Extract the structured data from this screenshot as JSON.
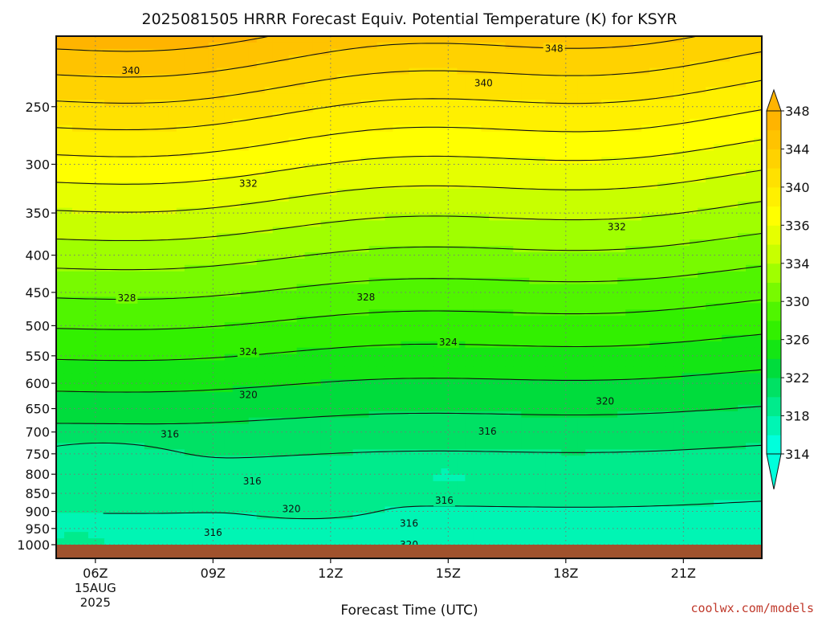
{
  "chart_data": {
    "type": "heatmap",
    "title": "2025081505 HRRR Forecast Equiv. Potential Temperature (K) for KSYR",
    "xlabel": "Forecast Time (UTC)",
    "ylabel": "",
    "x_ticks": [
      {
        "hour": 6,
        "label": "06Z",
        "date": "15AUG",
        "year": "2025"
      },
      {
        "hour": 9,
        "label": "09Z"
      },
      {
        "hour": 12,
        "label": "12Z"
      },
      {
        "hour": 15,
        "label": "15Z"
      },
      {
        "hour": 18,
        "label": "18Z"
      },
      {
        "hour": 21,
        "label": "21Z"
      }
    ],
    "xlim": [
      5,
      23
    ],
    "y_ticks": [
      250,
      300,
      350,
      400,
      450,
      500,
      550,
      600,
      650,
      700,
      750,
      800,
      850,
      900,
      950,
      1000
    ],
    "ylim": [
      1000,
      200
    ],
    "y_scale": "log-pressure",
    "colorbar": {
      "levels": [
        314,
        316,
        318,
        320,
        322,
        324,
        326,
        328,
        330,
        332,
        334,
        336,
        338,
        340,
        342,
        344,
        346,
        348
      ],
      "labels": [
        314,
        318,
        322,
        326,
        330,
        334,
        336,
        340,
        344,
        348
      ],
      "colors": [
        "#00ffdc",
        "#00f5b4",
        "#00eb8c",
        "#00e164",
        "#00dc3c",
        "#14e614",
        "#32f000",
        "#50f500",
        "#78fa00",
        "#a0ff00",
        "#c8ff00",
        "#e6ff00",
        "#ffff00",
        "#fff000",
        "#ffe100",
        "#ffd200",
        "#ffc300",
        "#ffb400"
      ],
      "extend": "both"
    },
    "contour_labels": [
      {
        "value": "348",
        "x": 17.7,
        "p": 208
      },
      {
        "value": "340",
        "x": 6.9,
        "p": 223
      },
      {
        "value": "340",
        "x": 15.9,
        "p": 232
      },
      {
        "value": "332",
        "x": 9.9,
        "p": 319
      },
      {
        "value": "332",
        "x": 19.3,
        "p": 366
      },
      {
        "value": "328",
        "x": 6.8,
        "p": 458
      },
      {
        "value": "328",
        "x": 12.9,
        "p": 457
      },
      {
        "value": "324",
        "x": 9.9,
        "p": 543
      },
      {
        "value": "324",
        "x": 15.0,
        "p": 527
      },
      {
        "value": "320",
        "x": 9.9,
        "p": 622
      },
      {
        "value": "320",
        "x": 19.0,
        "p": 635
      },
      {
        "value": "316",
        "x": 7.9,
        "p": 705
      },
      {
        "value": "316",
        "x": 16.0,
        "p": 699
      },
      {
        "value": "316",
        "x": 10.0,
        "p": 818
      },
      {
        "value": "316",
        "x": 14.9,
        "p": 870
      },
      {
        "value": "320",
        "x": 11.0,
        "p": 893
      },
      {
        "value": "316",
        "x": 14.0,
        "p": 935
      },
      {
        "value": "316",
        "x": 9.0,
        "p": 963
      },
      {
        "value": "320",
        "x": 14.0,
        "p": 1000
      }
    ],
    "grid": true,
    "terrain_color": "#a0522d"
  },
  "credit": "coolwx.com/models"
}
